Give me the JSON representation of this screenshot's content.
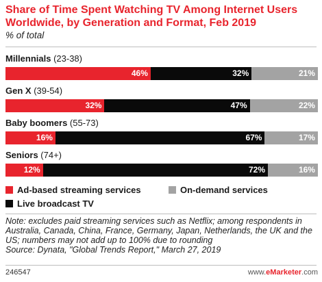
{
  "header": {
    "title": "Share of Time Spent Watching TV Among Internet Users Worldwide, by Generation and Format, Feb 2019",
    "subtitle": "% of total"
  },
  "chart_data": {
    "type": "bar",
    "orientation": "horizontal",
    "stacked": true,
    "categories": [
      {
        "name": "Millennials",
        "range": "(23-38)"
      },
      {
        "name": "Gen X",
        "range": "(39-54)"
      },
      {
        "name": "Baby boomers",
        "range": "(55-73)"
      },
      {
        "name": "Seniors",
        "range": "(74+)"
      }
    ],
    "series": [
      {
        "name": "Ad-based streaming services",
        "color": "#e8242d",
        "values": [
          46,
          32,
          16,
          12
        ]
      },
      {
        "name": "Live broadcast TV",
        "color": "#0a0a0a",
        "values": [
          32,
          47,
          67,
          72
        ]
      },
      {
        "name": "On-demand services",
        "color": "#a3a3a3",
        "values": [
          21,
          22,
          17,
          16
        ]
      }
    ],
    "value_suffix": "%",
    "legend_position": "bottom"
  },
  "footer": {
    "note": "Note: excludes paid streaming services such as Netflix; among respondents in Australia, Canada, China, France, Germany, Japan, Netherlands, the UK and the US; numbers may not add up to 100% due to rounding",
    "source": "Source: Dynata, \"Global Trends Report,\" March 27, 2019",
    "chart_id": "246547",
    "brand_prefix": "www.",
    "brand_name": "eMarketer",
    "brand_suffix": ".com"
  }
}
